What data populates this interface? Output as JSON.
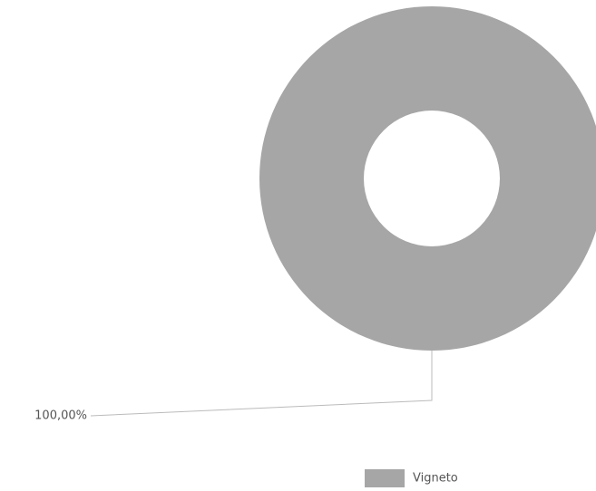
{
  "chart_data": {
    "type": "pie",
    "categories": [
      "Vigneto"
    ],
    "values": [
      100
    ],
    "value_labels": [
      "100,00%"
    ],
    "colors": [
      "#a6a6a6"
    ],
    "donut": true
  }
}
